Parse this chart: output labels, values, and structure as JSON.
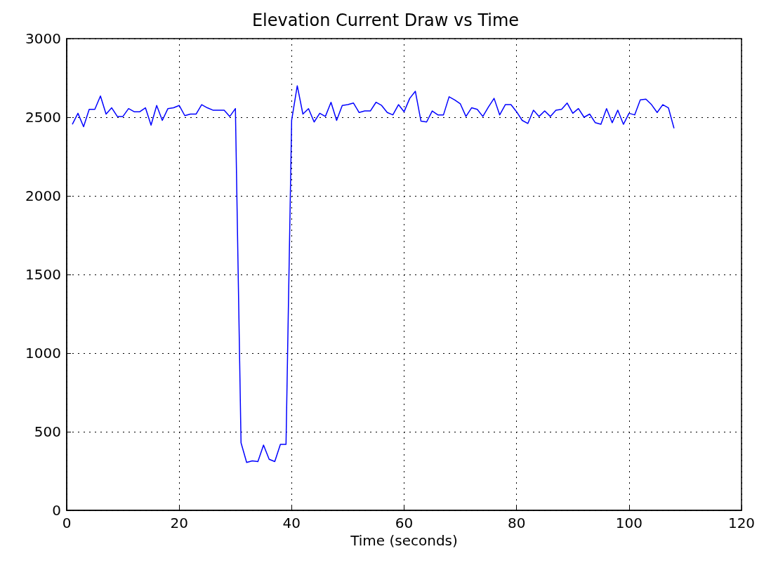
{
  "chart_data": {
    "type": "line",
    "title": "Elevation Current Draw vs Time",
    "xlabel": "Time (seconds)",
    "x": [
      1,
      2,
      3,
      4,
      5,
      6,
      7,
      8,
      9,
      10,
      11,
      12,
      13,
      14,
      15,
      16,
      17,
      18,
      19,
      20,
      21,
      22,
      23,
      24,
      25,
      26,
      27,
      28,
      29,
      30,
      31,
      32,
      33,
      34,
      35,
      36,
      37,
      38,
      39,
      40,
      41,
      42,
      43,
      44,
      45,
      46,
      47,
      48,
      49,
      50,
      51,
      52,
      53,
      54,
      55,
      56,
      57,
      58,
      59,
      60,
      61,
      62,
      63,
      64,
      65,
      66,
      67,
      68,
      69,
      70,
      71,
      72,
      73,
      74,
      75,
      76,
      77,
      78,
      79,
      80,
      81,
      82,
      83,
      84,
      85,
      86,
      87,
      88,
      89,
      90,
      91,
      92,
      93,
      94,
      95,
      96,
      97,
      98,
      99,
      100,
      101,
      102,
      103,
      104,
      105,
      106,
      107,
      108
    ],
    "series": [
      {
        "color": "#0000ff",
        "values": [
          2455,
          2525,
          2440,
          2550,
          2550,
          2635,
          2520,
          2560,
          2505,
          2505,
          2555,
          2535,
          2535,
          2560,
          2450,
          2575,
          2480,
          2555,
          2560,
          2575,
          2510,
          2520,
          2520,
          2580,
          2560,
          2545,
          2545,
          2545,
          2505,
          2555,
          430,
          305,
          315,
          310,
          415,
          325,
          310,
          420,
          420,
          2480,
          2700,
          2520,
          2555,
          2470,
          2525,
          2505,
          2595,
          2480,
          2575,
          2580,
          2590,
          2530,
          2540,
          2540,
          2595,
          2575,
          2530,
          2515,
          2580,
          2535,
          2620,
          2665,
          2475,
          2470,
          2540,
          2515,
          2515,
          2630,
          2610,
          2585,
          2505,
          2560,
          2550,
          2505,
          2565,
          2620,
          2515,
          2580,
          2580,
          2535,
          2480,
          2460,
          2545,
          2505,
          2540,
          2505,
          2545,
          2550,
          2590,
          2525,
          2555,
          2500,
          2520,
          2465,
          2455,
          2555,
          2465,
          2545,
          2455,
          2525,
          2515,
          2610,
          2615,
          2580,
          2530,
          2580,
          2560,
          2430
        ]
      }
    ],
    "xlim": [
      0,
      120
    ],
    "xticks": [
      0,
      20,
      40,
      60,
      80,
      100,
      120
    ],
    "ylim": [
      0,
      3000
    ],
    "yticks": [
      0,
      500,
      1000,
      1500,
      2000,
      2500,
      3000
    ],
    "grid": true,
    "marker": "none",
    "line_style": "solid"
  }
}
